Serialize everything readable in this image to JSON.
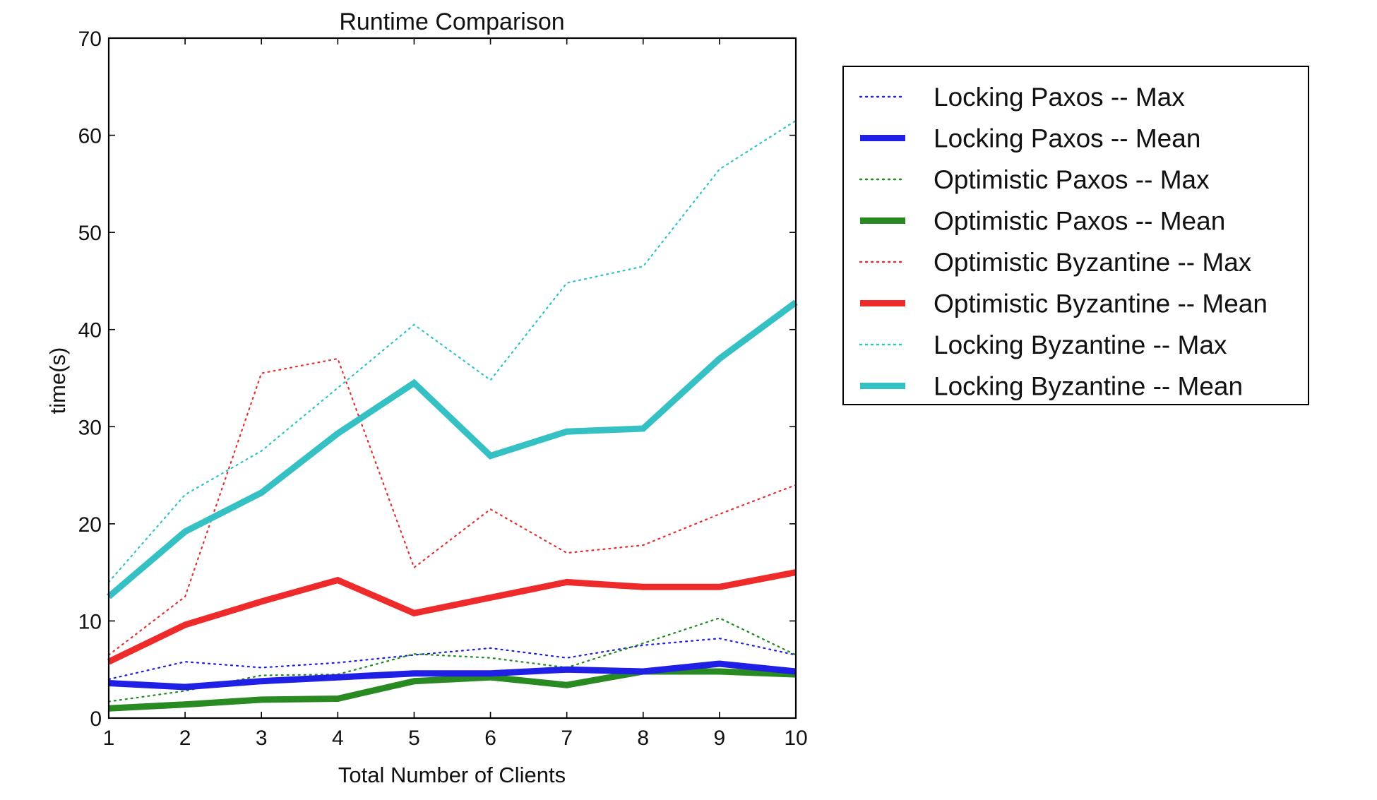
{
  "chart_data": {
    "type": "line",
    "title": "Runtime Comparison",
    "xlabel": "Total Number of Clients",
    "ylabel": "time(s)",
    "xlim": [
      1,
      10
    ],
    "ylim": [
      0,
      70
    ],
    "x": [
      1,
      2,
      3,
      4,
      5,
      6,
      7,
      8,
      9,
      10
    ],
    "xticks": [
      "1",
      "2",
      "3",
      "4",
      "5",
      "6",
      "7",
      "8",
      "9",
      "10"
    ],
    "yticks": [
      "0",
      "10",
      "20",
      "30",
      "40",
      "50",
      "60",
      "70"
    ],
    "grid": false,
    "legend_position": "right, outside plot",
    "series": [
      {
        "name": "Locking Paxos -- Max",
        "style": "dotted",
        "color": "#1f1fd8",
        "values": [
          4.0,
          5.8,
          5.2,
          5.7,
          6.5,
          7.2,
          6.2,
          7.5,
          8.2,
          6.5
        ]
      },
      {
        "name": "Locking Paxos -- Mean",
        "style": "solid",
        "color": "#1f1fe6",
        "values": [
          3.6,
          3.2,
          3.8,
          4.2,
          4.6,
          4.6,
          5.0,
          4.8,
          5.6,
          4.8
        ]
      },
      {
        "name": "Optimistic Paxos -- Max",
        "style": "dotted",
        "color": "#1e8a1e",
        "values": [
          1.7,
          2.8,
          4.4,
          4.5,
          6.6,
          6.2,
          5.2,
          7.7,
          10.3,
          6.5
        ]
      },
      {
        "name": "Optimistic Paxos -- Mean",
        "style": "solid",
        "color": "#2a8a22",
        "values": [
          1.0,
          1.4,
          1.9,
          2.0,
          3.8,
          4.2,
          3.4,
          4.8,
          4.8,
          4.5
        ]
      },
      {
        "name": "Optimistic Byzantine -- Max",
        "style": "dotted",
        "color": "#e03030",
        "values": [
          6.5,
          12.5,
          35.5,
          37.0,
          15.5,
          21.5,
          17.0,
          17.8,
          21.0,
          24.0
        ]
      },
      {
        "name": "Optimistic Byzantine -- Mean",
        "style": "solid",
        "color": "#ee2a2a",
        "values": [
          5.8,
          9.6,
          12.0,
          14.2,
          10.8,
          12.4,
          14.0,
          13.5,
          13.5,
          15.0
        ]
      },
      {
        "name": "Locking Byzantine -- Max",
        "style": "dotted",
        "color": "#2cc3c8",
        "values": [
          14.0,
          23.0,
          27.5,
          34.0,
          40.5,
          34.8,
          44.8,
          46.5,
          56.5,
          61.5
        ]
      },
      {
        "name": "Locking Byzantine -- Mean",
        "style": "solid",
        "color": "#35c1c3",
        "values": [
          12.5,
          19.2,
          23.2,
          29.3,
          34.5,
          27.0,
          29.5,
          29.8,
          37.0,
          42.8
        ]
      }
    ]
  }
}
